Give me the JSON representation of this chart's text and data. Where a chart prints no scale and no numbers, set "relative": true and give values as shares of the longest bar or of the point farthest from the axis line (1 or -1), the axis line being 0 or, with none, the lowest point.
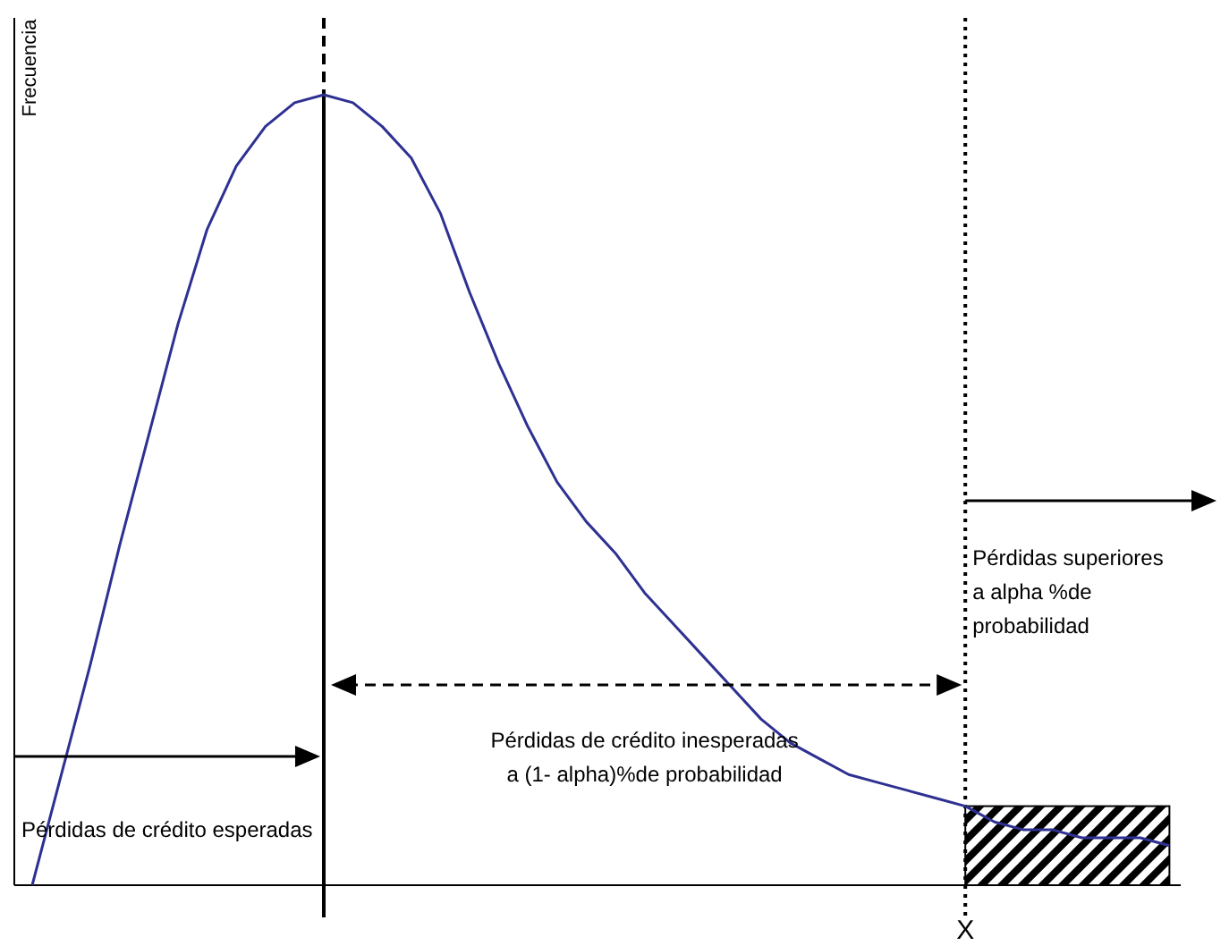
{
  "chart_data": {
    "type": "line",
    "relative": true,
    "ylabel": "Frecuencia",
    "line_style": "solid",
    "categories": [
      null,
      null,
      null,
      null,
      null,
      null,
      null,
      null,
      null,
      null,
      null,
      null,
      null,
      null,
      null,
      null,
      null,
      null,
      null,
      null,
      null,
      null,
      null,
      null,
      null,
      null,
      null,
      null,
      null,
      null,
      null,
      null,
      null,
      null,
      null,
      null,
      null,
      null,
      null,
      null
    ],
    "series": [
      {
        "color": "#2e3192",
        "values": [
          0,
          0.14,
          0.28,
          0.43,
          0.57,
          0.71,
          0.83,
          0.91,
          0.96,
          0.99,
          1,
          0.99,
          0.96,
          0.92,
          0.85,
          0.75,
          0.66,
          0.58,
          0.51,
          0.46,
          0.42,
          0.37,
          0.33,
          0.29,
          0.25,
          0.21,
          0.18,
          0.16,
          0.14,
          0.13,
          0.12,
          0.11,
          0.1,
          0.08,
          0.07,
          0.07,
          0.06,
          0.06,
          0.06,
          0.05
        ]
      }
    ],
    "annotations": [
      "X",
      "Pérdidas de crédito esperadas",
      "Pérdidas de crédito inesperadas\na (1- alpha)%de probabilidad",
      "Pérdidas superiores\na alpha %de\nprobabilidad"
    ]
  }
}
